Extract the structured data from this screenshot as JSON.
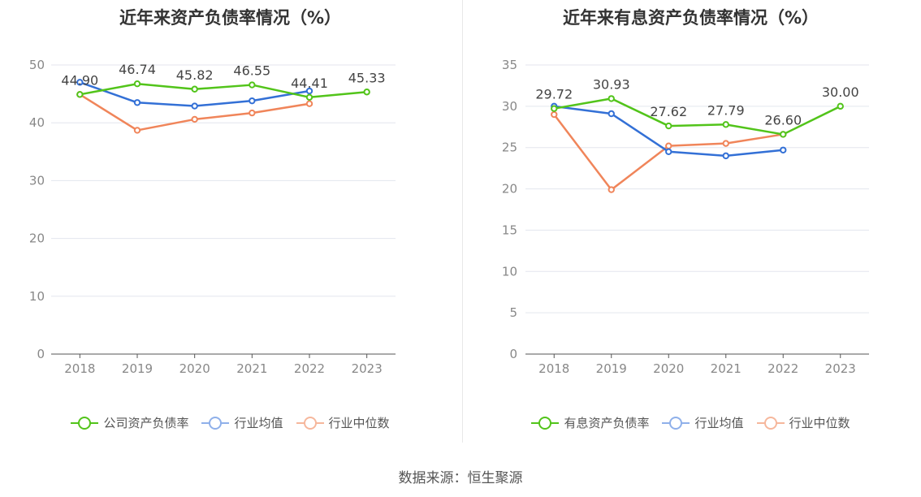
{
  "source": "数据来源：恒生聚源",
  "chart_data": [
    {
      "type": "line",
      "title": "近年来资产负债率情况（%）",
      "categories": [
        "2018",
        "2019",
        "2020",
        "2021",
        "2022",
        "2023"
      ],
      "ylim": [
        0,
        50
      ],
      "yticks": [
        0,
        10,
        20,
        30,
        40,
        50
      ],
      "grid": true,
      "legend_position": "bottom",
      "series": [
        {
          "name": "公司资产负债率",
          "color": "#52c41a",
          "values": [
            44.9,
            46.74,
            45.82,
            46.55,
            44.41,
            45.33
          ],
          "labels": [
            "44.90",
            "46.74",
            "45.82",
            "46.55",
            "44.41",
            "45.33"
          ]
        },
        {
          "name": "行业均值",
          "color": "#3370d6",
          "legend_color": "#8fb0ea",
          "values": [
            47.0,
            43.5,
            42.9,
            43.8,
            45.5,
            null
          ]
        },
        {
          "name": "行业中位数",
          "color": "#f0855a",
          "legend_color": "#f6b79c",
          "values": [
            44.9,
            38.7,
            40.6,
            41.7,
            43.3,
            null
          ]
        }
      ]
    },
    {
      "type": "line",
      "title": "近年来有息资产负债率情况（%）",
      "categories": [
        "2018",
        "2019",
        "2020",
        "2021",
        "2022",
        "2023"
      ],
      "ylim": [
        0,
        35
      ],
      "yticks": [
        0,
        5,
        10,
        15,
        20,
        25,
        30,
        35
      ],
      "grid": true,
      "legend_position": "bottom",
      "series": [
        {
          "name": "有息资产负债率",
          "color": "#52c41a",
          "values": [
            29.72,
            30.93,
            27.62,
            27.79,
            26.6,
            30.0
          ],
          "labels": [
            "29.72",
            "30.93",
            "27.62",
            "27.79",
            "26.60",
            "30.00"
          ]
        },
        {
          "name": "行业均值",
          "color": "#3370d6",
          "legend_color": "#8fb0ea",
          "values": [
            30.0,
            29.1,
            24.5,
            24.0,
            24.7,
            null
          ]
        },
        {
          "name": "行业中位数",
          "color": "#f0855a",
          "legend_color": "#f6b79c",
          "values": [
            29.0,
            19.9,
            25.2,
            25.5,
            26.6,
            null
          ]
        }
      ]
    }
  ]
}
